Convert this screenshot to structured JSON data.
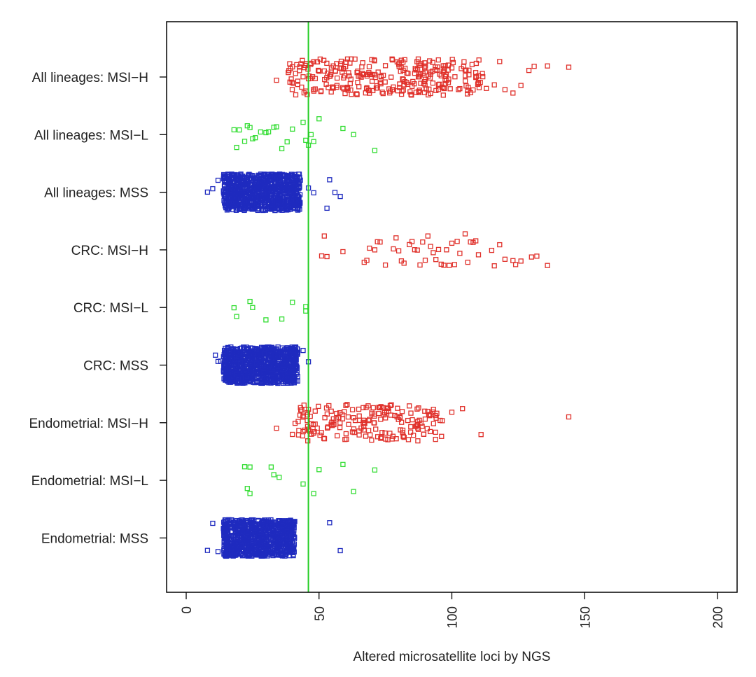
{
  "chart_data": {
    "type": "scatter",
    "title": "",
    "xlabel": "Altered microsatellite loci by NGS",
    "ylabel": "",
    "xlim": [
      -7,
      200
    ],
    "xticks": [
      0,
      50,
      100,
      150,
      200
    ],
    "xtick_labels": [
      "0",
      "50",
      "100",
      "150",
      "200"
    ],
    "grid": false,
    "legend": "none",
    "threshold_line": {
      "x": 46,
      "color": "#22cc22"
    },
    "categories": [
      "All lineages: MSI−H",
      "All lineages: MSI−L",
      "All lineages: MSS",
      "CRC: MSI−H",
      "CRC: MSI−L",
      "CRC: MSS",
      "Endometrial: MSI−H",
      "Endometrial: MSI−L",
      "Endometrial: MSS"
    ],
    "colors": {
      "MSI-H": "#e0302a",
      "MSI-L": "#33dd33",
      "MSS": "#1f2bbf"
    },
    "series": [
      {
        "category": "All lineages: MSI−H",
        "status": "MSI-H",
        "cluster": {
          "count": 260,
          "min": 38,
          "max": 112
        },
        "x": [
          34,
          40,
          42,
          44,
          46,
          48,
          50,
          52,
          55,
          58,
          60,
          62,
          65,
          68,
          70,
          72,
          75,
          78,
          80,
          83,
          85,
          88,
          90,
          92,
          95,
          98,
          100,
          103,
          105,
          108,
          110,
          113,
          116,
          118,
          120,
          123,
          126,
          129,
          131,
          136,
          144
        ]
      },
      {
        "category": "All lineages: MSI−L",
        "status": "MSI-L",
        "x": [
          18,
          19,
          20,
          22,
          23,
          24,
          25,
          26,
          28,
          30,
          31,
          33,
          34,
          36,
          38,
          40,
          44,
          45,
          46,
          47,
          48,
          50,
          59,
          63,
          71
        ]
      },
      {
        "category": "All lineages: MSS",
        "status": "MSS",
        "cluster": {
          "count": 900,
          "min": 14,
          "max": 43
        },
        "x": [
          8,
          10,
          12,
          46,
          48,
          53,
          54,
          56,
          58
        ]
      },
      {
        "category": "CRC: MSI−H",
        "status": "MSI-H",
        "x": [
          51,
          52,
          53,
          59,
          67,
          68,
          69,
          71,
          72,
          73,
          75,
          78,
          79,
          80,
          81,
          82,
          84,
          85,
          86,
          87,
          88,
          89,
          90,
          91,
          92,
          93,
          94,
          95,
          96,
          97,
          98,
          99,
          100,
          101,
          102,
          103,
          105,
          106,
          107,
          108,
          109,
          110,
          115,
          116,
          118,
          120,
          123,
          124,
          126,
          130,
          132,
          136
        ]
      },
      {
        "category": "CRC: MSI−L",
        "status": "MSI-L",
        "x": [
          18,
          19,
          24,
          25,
          30,
          36,
          40,
          45,
          45
        ]
      },
      {
        "category": "CRC: MSS",
        "status": "MSS",
        "cluster": {
          "count": 900,
          "min": 14,
          "max": 42
        },
        "x": [
          11,
          12,
          13,
          44,
          46
        ]
      },
      {
        "category": "Endometrial: MSI−H",
        "status": "MSI-H",
        "cluster": {
          "count": 180,
          "min": 42,
          "max": 97
        },
        "x": [
          34,
          40,
          41,
          43,
          44,
          46,
          100,
          104,
          111,
          144
        ]
      },
      {
        "category": "Endometrial: MSI−L",
        "status": "MSI-L",
        "x": [
          22,
          23,
          24,
          24,
          32,
          33,
          35,
          44,
          48,
          50,
          59,
          63,
          71
        ]
      },
      {
        "category": "Endometrial: MSS",
        "status": "MSS",
        "cluster": {
          "count": 850,
          "min": 14,
          "max": 41
        },
        "x": [
          8,
          10,
          12,
          14,
          54,
          58
        ]
      }
    ]
  }
}
